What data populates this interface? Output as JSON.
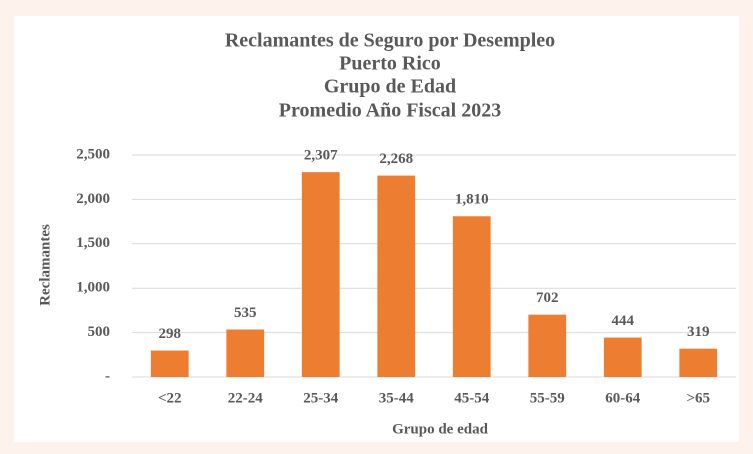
{
  "chart_data": {
    "type": "bar",
    "title": [
      "Reclamantes de Seguro por Desempleo",
      "Puerto Rico",
      "Grupo de Edad",
      "Promedio Año Fiscal 2023"
    ],
    "xlabel": "Grupo de edad",
    "ylabel": "Reclamantes",
    "categories": [
      "<22",
      "22-24",
      "25-34",
      "35-44",
      "45-54",
      "55-59",
      "60-64",
      ">65"
    ],
    "values": [
      298,
      535,
      2307,
      2268,
      1810,
      702,
      444,
      319
    ],
    "value_labels": [
      "298",
      "535",
      "2,307",
      "2,268",
      "1,810",
      "702",
      "444",
      "319"
    ],
    "color": "#ed7d31",
    "ylim": [
      0,
      2500
    ],
    "yticks": [
      {
        "value": 0,
        "label": "-"
      },
      500,
      {
        "value": 1000,
        "label": "1,000"
      },
      {
        "value": 1500,
        "label": "1,500"
      },
      {
        "value": 2000,
        "label": "2,000"
      },
      {
        "value": 2500,
        "label": "2,500"
      }
    ],
    "grid": true
  }
}
